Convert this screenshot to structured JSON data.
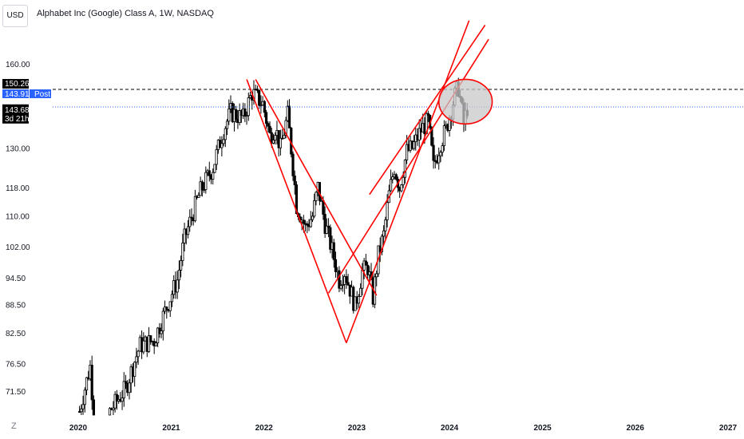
{
  "header": {
    "currency": "USD",
    "title": "Alphabet Inc (Google) Class A, 1W, NASDAQ"
  },
  "price_labels": {
    "last": "150.26",
    "post_price": "143.91",
    "post_tag": "Post",
    "close": "143.68",
    "countdown": "3d 21h"
  },
  "axis_icon": "Z",
  "colors": {
    "trendline": "#ff0000",
    "candles": "#000000",
    "last_badge": "#000000",
    "post_badge": "#2962ff",
    "post_line": "#2962ff",
    "last_line": "#000000",
    "circle_fill": "#c8c8c8"
  },
  "chart_data": {
    "type": "candlestick",
    "y_scale": "log",
    "ylim": [
      66,
      172
    ],
    "xlim": [
      "2019-12-31",
      "2027-03-01"
    ],
    "ytick_labels": [
      "160.00",
      "130.00",
      "118.00",
      "110.00",
      "102.00",
      "94.50",
      "88.50",
      "82.50",
      "76.50",
      "71.50"
    ],
    "xtick_labels": [
      "2020",
      "2021",
      "2022",
      "2023",
      "2024",
      "2025",
      "2026",
      "2027"
    ],
    "series_points": [
      [
        "2020-01-06",
        68
      ],
      [
        "2020-01-27",
        72
      ],
      [
        "2020-02-17",
        76
      ],
      [
        "2020-03-23",
        54
      ],
      [
        "2020-05-04",
        68
      ],
      [
        "2020-07-06",
        72
      ],
      [
        "2020-08-31",
        80
      ],
      [
        "2020-10-26",
        81
      ],
      [
        "2020-12-14",
        88
      ],
      [
        "2021-01-25",
        94
      ],
      [
        "2021-02-22",
        104
      ],
      [
        "2021-04-26",
        117
      ],
      [
        "2021-06-14",
        124
      ],
      [
        "2021-07-26",
        136
      ],
      [
        "2021-08-23",
        142
      ],
      [
        "2021-10-11",
        140
      ],
      [
        "2021-11-15",
        149
      ],
      [
        "2021-12-27",
        145
      ],
      [
        "2022-01-24",
        134
      ],
      [
        "2022-02-14",
        137
      ],
      [
        "2022-03-07",
        130
      ],
      [
        "2022-04-04",
        141
      ],
      [
        "2022-05-09",
        113
      ],
      [
        "2022-06-13",
        107
      ],
      [
        "2022-07-11",
        110
      ],
      [
        "2022-08-01",
        118
      ],
      [
        "2022-08-29",
        108
      ],
      [
        "2022-09-26",
        101
      ],
      [
        "2022-10-24",
        94
      ],
      [
        "2022-11-14",
        96
      ],
      [
        "2022-12-05",
        92
      ],
      [
        "2022-12-26",
        88
      ],
      [
        "2023-01-23",
        96
      ],
      [
        "2023-02-13",
        97
      ],
      [
        "2023-03-06",
        90
      ],
      [
        "2023-03-27",
        100
      ],
      [
        "2023-04-17",
        105
      ],
      [
        "2023-05-08",
        116
      ],
      [
        "2023-05-29",
        124
      ],
      [
        "2023-06-19",
        118
      ],
      [
        "2023-07-17",
        129
      ],
      [
        "2023-08-07",
        130
      ],
      [
        "2023-09-11",
        136
      ],
      [
        "2023-10-09",
        139
      ],
      [
        "2023-10-30",
        124
      ],
      [
        "2023-11-27",
        132
      ],
      [
        "2023-12-18",
        136
      ],
      [
        "2024-01-22",
        148
      ],
      [
        "2024-02-05",
        151
      ],
      [
        "2024-02-26",
        138
      ],
      [
        "2024-03-11",
        143.68
      ]
    ],
    "last_price": 150.26,
    "post_price": 143.91,
    "close_price": 143.68,
    "drawings": [
      {
        "type": "line",
        "color": "#ff0000",
        "points": [
          [
            "2021-10-25",
            154
          ],
          [
            "2022-11-21",
            80.5
          ]
        ]
      },
      {
        "type": "line",
        "color": "#ff0000",
        "points": [
          [
            "2022-11-21",
            80.5
          ],
          [
            "2024-03-18",
            178
          ]
        ]
      },
      {
        "type": "line",
        "color": "#ff0000",
        "points": [
          [
            "2021-11-29",
            154
          ],
          [
            "2023-03-20",
            90.5
          ]
        ]
      },
      {
        "type": "line",
        "color": "#ff0000",
        "points": [
          [
            "2022-09-12",
            91
          ],
          [
            "2024-06-03",
            170
          ]
        ]
      },
      {
        "type": "line",
        "color": "#ff0000",
        "points": [
          [
            "2023-02-20",
            116
          ],
          [
            "2024-05-20",
            176
          ]
        ]
      },
      {
        "type": "ellipse",
        "color": "#ff0000",
        "fill": "#c8c8c8",
        "center": [
          "2024-03-04",
          143
        ],
        "rx_days": 105,
        "y_range": [
          138,
          154
        ]
      }
    ]
  }
}
